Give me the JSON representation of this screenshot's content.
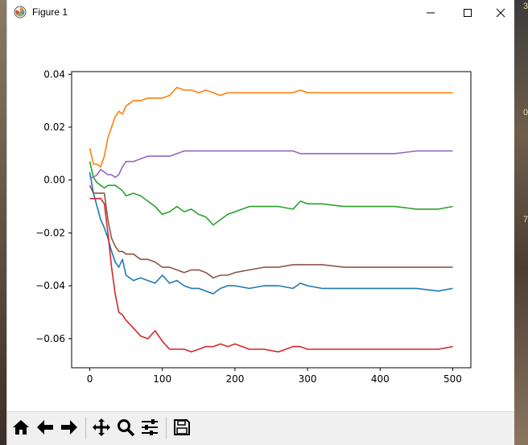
{
  "window": {
    "title": "Figure 1"
  },
  "desktop_edge_text": [
    "3",
    "0",
    "7"
  ],
  "icons": {
    "app": "matplotlib-icon",
    "minimize": "minimize-icon",
    "maximize": "maximize-icon",
    "close": "close-icon"
  },
  "toolbar": {
    "buttons": [
      {
        "name": "home",
        "icon": "home-icon"
      },
      {
        "name": "back",
        "icon": "back-arrow-icon"
      },
      {
        "name": "forward",
        "icon": "forward-arrow-icon"
      },
      {
        "name": "pan",
        "icon": "move-icon"
      },
      {
        "name": "zoom",
        "icon": "magnifier-icon"
      },
      {
        "name": "configure",
        "icon": "sliders-icon"
      },
      {
        "name": "save",
        "icon": "floppy-disk-icon"
      }
    ]
  },
  "chart_data": {
    "type": "line",
    "title": "",
    "xlabel": "",
    "ylabel": "",
    "xlim": [
      -25,
      525
    ],
    "ylim": [
      -0.071,
      0.041
    ],
    "xticks": [
      0,
      100,
      200,
      300,
      400,
      500
    ],
    "xtick_labels": [
      "0",
      "100",
      "200",
      "300",
      "400",
      "500"
    ],
    "yticks": [
      0.04,
      0.02,
      0.0,
      -0.02,
      -0.04,
      -0.06
    ],
    "ytick_labels": [
      "0.04",
      "0.02",
      "0.00",
      "−0.02",
      "−0.04",
      "−0.06"
    ],
    "grid": false,
    "legend": false,
    "series": [
      {
        "color": "#1f77b4",
        "x": [
          0,
          5,
          10,
          15,
          20,
          25,
          30,
          35,
          40,
          45,
          50,
          60,
          70,
          80,
          90,
          100,
          110,
          120,
          130,
          140,
          150,
          160,
          170,
          180,
          190,
          200,
          220,
          240,
          260,
          280,
          290,
          300,
          320,
          350,
          380,
          400,
          420,
          450,
          480,
          500
        ],
        "y": [
          0.003,
          -0.005,
          -0.01,
          -0.015,
          -0.018,
          -0.022,
          -0.027,
          -0.031,
          -0.033,
          -0.03,
          -0.036,
          -0.038,
          -0.037,
          -0.038,
          -0.039,
          -0.036,
          -0.039,
          -0.038,
          -0.04,
          -0.041,
          -0.041,
          -0.042,
          -0.043,
          -0.041,
          -0.04,
          -0.04,
          -0.041,
          -0.04,
          -0.04,
          -0.041,
          -0.039,
          -0.04,
          -0.041,
          -0.041,
          -0.041,
          -0.041,
          -0.041,
          -0.041,
          -0.042,
          -0.041
        ]
      },
      {
        "color": "#ff7f0e",
        "x": [
          0,
          5,
          10,
          15,
          20,
          25,
          30,
          35,
          40,
          45,
          50,
          60,
          70,
          80,
          90,
          100,
          110,
          120,
          130,
          140,
          150,
          160,
          170,
          180,
          190,
          200,
          220,
          240,
          260,
          280,
          290,
          300,
          320,
          350,
          380,
          400,
          420,
          450,
          480,
          500
        ],
        "y": [
          0.012,
          0.006,
          0.006,
          0.005,
          0.009,
          0.016,
          0.02,
          0.024,
          0.026,
          0.025,
          0.028,
          0.03,
          0.03,
          0.031,
          0.031,
          0.031,
          0.032,
          0.035,
          0.034,
          0.034,
          0.033,
          0.034,
          0.033,
          0.032,
          0.033,
          0.033,
          0.033,
          0.033,
          0.033,
          0.033,
          0.034,
          0.033,
          0.033,
          0.033,
          0.033,
          0.033,
          0.033,
          0.033,
          0.033,
          0.033
        ]
      },
      {
        "color": "#2ca02c",
        "x": [
          0,
          5,
          10,
          15,
          20,
          25,
          30,
          35,
          40,
          45,
          50,
          60,
          70,
          80,
          90,
          100,
          110,
          120,
          130,
          140,
          150,
          160,
          170,
          180,
          190,
          200,
          220,
          240,
          260,
          280,
          290,
          300,
          320,
          350,
          380,
          400,
          420,
          450,
          480,
          500
        ],
        "y": [
          0.007,
          0.001,
          -0.001,
          -0.002,
          -0.003,
          -0.002,
          -0.002,
          -0.002,
          -0.003,
          -0.004,
          -0.006,
          -0.005,
          -0.006,
          -0.008,
          -0.01,
          -0.013,
          -0.012,
          -0.01,
          -0.012,
          -0.011,
          -0.013,
          -0.014,
          -0.017,
          -0.015,
          -0.013,
          -0.012,
          -0.01,
          -0.01,
          -0.01,
          -0.011,
          -0.008,
          -0.009,
          -0.009,
          -0.01,
          -0.01,
          -0.01,
          -0.01,
          -0.011,
          -0.011,
          -0.01
        ]
      },
      {
        "color": "#d62728",
        "x": [
          0,
          5,
          10,
          15,
          20,
          25,
          30,
          35,
          40,
          45,
          50,
          60,
          70,
          80,
          90,
          100,
          110,
          120,
          130,
          140,
          150,
          160,
          170,
          180,
          190,
          200,
          220,
          240,
          260,
          280,
          290,
          300,
          320,
          350,
          380,
          400,
          420,
          450,
          480,
          500
        ],
        "y": [
          -0.007,
          -0.007,
          -0.007,
          -0.007,
          -0.009,
          -0.02,
          -0.033,
          -0.043,
          -0.05,
          -0.051,
          -0.053,
          -0.056,
          -0.059,
          -0.06,
          -0.057,
          -0.061,
          -0.064,
          -0.064,
          -0.064,
          -0.065,
          -0.064,
          -0.063,
          -0.063,
          -0.062,
          -0.063,
          -0.062,
          -0.064,
          -0.064,
          -0.065,
          -0.063,
          -0.063,
          -0.064,
          -0.064,
          -0.064,
          -0.064,
          -0.064,
          -0.064,
          -0.064,
          -0.064,
          -0.063
        ]
      },
      {
        "color": "#9467bd",
        "x": [
          0,
          5,
          10,
          15,
          20,
          25,
          30,
          35,
          40,
          45,
          50,
          60,
          70,
          80,
          90,
          100,
          110,
          120,
          130,
          140,
          150,
          160,
          170,
          180,
          190,
          200,
          220,
          240,
          260,
          280,
          290,
          300,
          320,
          350,
          380,
          400,
          420,
          450,
          480,
          500
        ],
        "y": [
          0.001,
          0.001,
          0.002,
          0.004,
          0.003,
          0.002,
          0.002,
          0.001,
          0.002,
          0.005,
          0.007,
          0.007,
          0.008,
          0.009,
          0.009,
          0.009,
          0.009,
          0.01,
          0.011,
          0.011,
          0.011,
          0.011,
          0.011,
          0.011,
          0.011,
          0.011,
          0.011,
          0.011,
          0.011,
          0.011,
          0.01,
          0.01,
          0.01,
          0.01,
          0.01,
          0.01,
          0.01,
          0.011,
          0.011,
          0.011
        ]
      },
      {
        "color": "#8c564b",
        "x": [
          0,
          5,
          10,
          15,
          20,
          25,
          30,
          35,
          40,
          45,
          50,
          60,
          70,
          80,
          90,
          100,
          110,
          120,
          130,
          140,
          150,
          160,
          170,
          180,
          190,
          200,
          220,
          240,
          260,
          280,
          290,
          300,
          320,
          350,
          380,
          400,
          420,
          450,
          480,
          500
        ],
        "y": [
          -0.002,
          -0.005,
          -0.005,
          -0.005,
          -0.005,
          -0.015,
          -0.022,
          -0.025,
          -0.027,
          -0.027,
          -0.028,
          -0.028,
          -0.03,
          -0.03,
          -0.031,
          -0.033,
          -0.033,
          -0.034,
          -0.035,
          -0.034,
          -0.034,
          -0.035,
          -0.037,
          -0.036,
          -0.036,
          -0.035,
          -0.034,
          -0.033,
          -0.033,
          -0.032,
          -0.032,
          -0.032,
          -0.032,
          -0.033,
          -0.033,
          -0.033,
          -0.033,
          -0.033,
          -0.033,
          -0.033
        ]
      }
    ]
  }
}
